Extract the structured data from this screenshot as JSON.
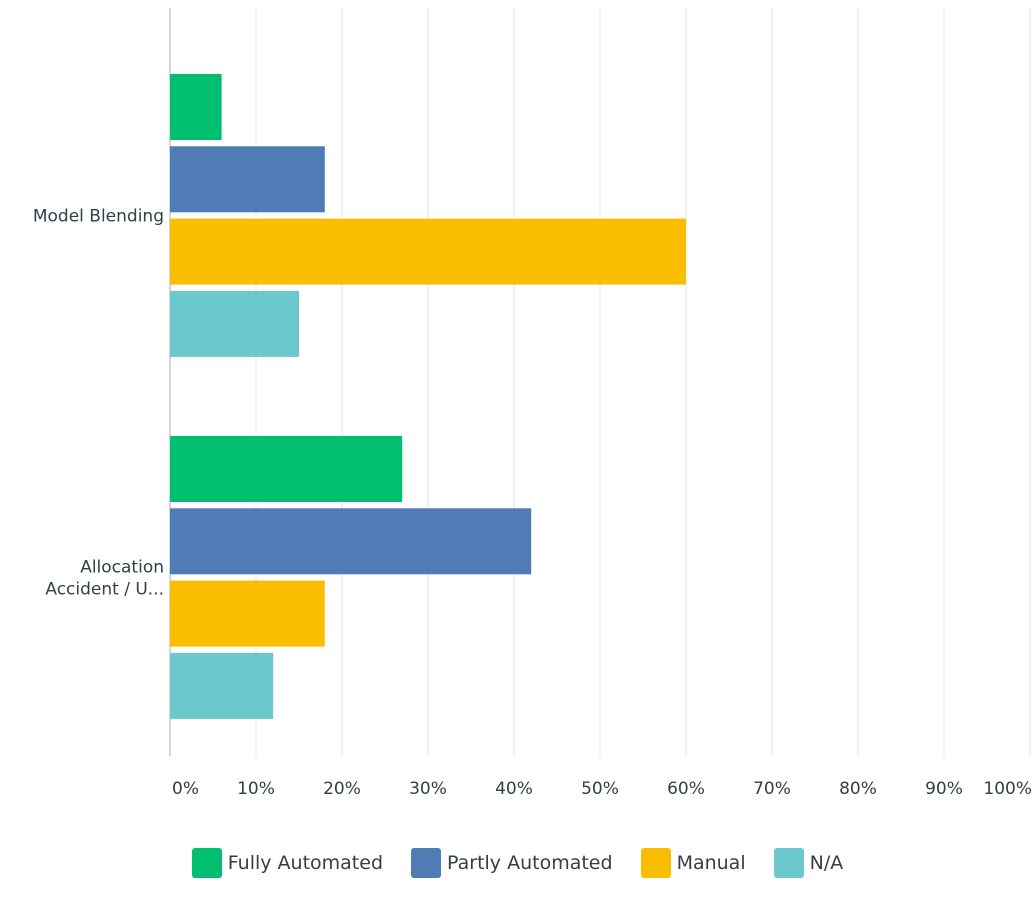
{
  "chart_data": {
    "type": "bar",
    "orientation": "horizontal",
    "categories": [
      "Model Blending",
      "Allocation Accident / U..."
    ],
    "category_label_lines": [
      [
        "Model Blending"
      ],
      [
        "Allocation",
        "Accident / U..."
      ]
    ],
    "series": [
      {
        "name": "Fully Automated",
        "color": "#00bf6f",
        "values": [
          6,
          27
        ]
      },
      {
        "name": "Partly Automated",
        "color": "#507cb6",
        "values": [
          18,
          42
        ]
      },
      {
        "name": "Manual",
        "color": "#f9be00",
        "values": [
          60,
          18
        ]
      },
      {
        "name": "N/A",
        "color": "#6bc8cd",
        "values": [
          15,
          12
        ]
      }
    ],
    "xlim": [
      0,
      100
    ],
    "xticks": [
      0,
      10,
      20,
      30,
      40,
      50,
      60,
      70,
      80,
      90,
      100
    ],
    "xtick_labels": [
      "0%",
      "10%",
      "20%",
      "30%",
      "40%",
      "50%",
      "60%",
      "70%",
      "80%",
      "90%",
      "100%"
    ],
    "grid": "vertical",
    "legend_position": "bottom-center"
  }
}
